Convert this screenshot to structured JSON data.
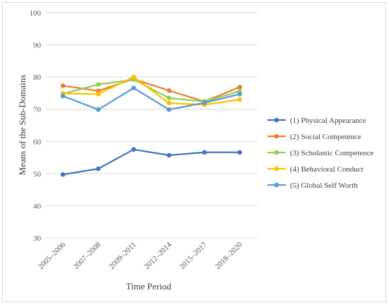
{
  "chart_data": {
    "type": "line",
    "xlabel": "Time Period",
    "ylabel": "Means of the Sub-Domains",
    "categories": [
      "2005–2006",
      "2007–2008",
      "2009–2011",
      "2012–2014",
      "2015–2017",
      "2018–2020"
    ],
    "ylim": [
      30,
      100
    ],
    "yticks": [
      30,
      40,
      50,
      60,
      70,
      80,
      90,
      100
    ],
    "grid": "horizontal",
    "legend_position": "right",
    "series": [
      {
        "name": "(1) Physical Appearance",
        "color": "#4472c4",
        "values": [
          49.7,
          51.5,
          57.5,
          55.7,
          56.6,
          56.6
        ]
      },
      {
        "name": "(2) Social Competence",
        "color": "#ed7d31",
        "values": [
          77.3,
          75.7,
          79.4,
          75.8,
          72.4,
          76.9
        ]
      },
      {
        "name": "(3) Scholastic Competence",
        "color": "#92d050",
        "values": [
          74.8,
          77.7,
          79.2,
          73.5,
          72.4,
          75.6
        ]
      },
      {
        "name": "(4) Behavioral Conduct",
        "color": "#ffc000",
        "values": [
          74.9,
          74.7,
          80.0,
          71.9,
          71.4,
          73.0
        ]
      },
      {
        "name": "(5) Global Self Worth",
        "color": "#5b9bd5",
        "values": [
          74.1,
          69.9,
          76.6,
          69.9,
          72.0,
          74.7
        ]
      }
    ]
  }
}
